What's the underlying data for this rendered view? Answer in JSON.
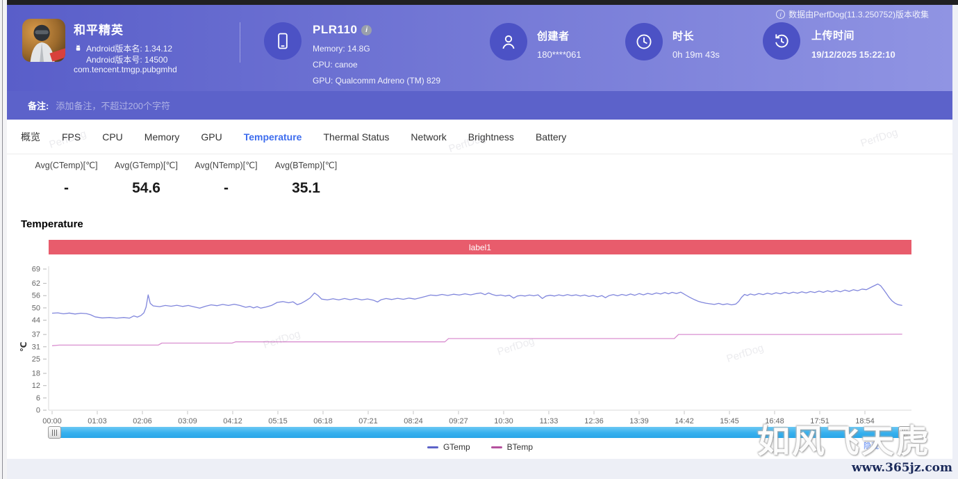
{
  "theme": {
    "accent": "#3d6cee",
    "header_from": "#595ec9",
    "header_to": "#9094e3",
    "note_bar": "#5c62ca",
    "icon_circle": "#4c52c5",
    "banner": "#e85c6c",
    "scrollbar": "#36b0ee"
  },
  "header": {
    "collector_note": "数据由PerfDog(11.3.250752)版本收集",
    "app": {
      "title": "和平精英",
      "version_name": "Android版本名: 1.34.12",
      "version_code": "Android版本号: 14500",
      "package": "com.tencent.tmgp.pubgmhd"
    },
    "device": {
      "model": "PLR110",
      "memory": "Memory: 14.8G",
      "cpu": "CPU: canoe",
      "gpu": "GPU: Qualcomm Adreno (TM) 829"
    },
    "creator": {
      "label": "创建者",
      "value": "180****061"
    },
    "duration": {
      "label": "时长",
      "value": "0h 19m 43s"
    },
    "upload": {
      "label": "上传时间",
      "value": "19/12/2025 15:22:10"
    }
  },
  "note_bar": {
    "label": "备注:",
    "placeholder": "添加备注，不超过200个字符"
  },
  "tabs": [
    {
      "label": "概览",
      "active": false
    },
    {
      "label": "FPS",
      "active": false
    },
    {
      "label": "CPU",
      "active": false
    },
    {
      "label": "Memory",
      "active": false
    },
    {
      "label": "GPU",
      "active": false
    },
    {
      "label": "Temperature",
      "active": true
    },
    {
      "label": "Thermal Status",
      "active": false
    },
    {
      "label": "Network",
      "active": false
    },
    {
      "label": "Brightness",
      "active": false
    },
    {
      "label": "Battery",
      "active": false
    }
  ],
  "stats": [
    {
      "label": "Avg(CTemp)[℃]",
      "value": "-"
    },
    {
      "label": "Avg(GTemp)[℃]",
      "value": "54.6"
    },
    {
      "label": "Avg(NTemp)[℃]",
      "value": "-"
    },
    {
      "label": "Avg(BTemp)[℃]",
      "value": "35.1"
    }
  ],
  "section_title": "Temperature",
  "chart_data": {
    "type": "line",
    "title": "Temperature",
    "banner_label": "label1",
    "banner_color": "#e85c6c",
    "ylabel": "℃",
    "ylim": [
      0,
      69
    ],
    "yticks": [
      0,
      6,
      12,
      18,
      25,
      31,
      37,
      44,
      50,
      56,
      62,
      69
    ],
    "xticks": [
      "00:00",
      "01:03",
      "02:06",
      "03:09",
      "04:12",
      "05:15",
      "06:18",
      "07:21",
      "08:24",
      "09:27",
      "10:30",
      "11:33",
      "12:36",
      "13:39",
      "14:42",
      "15:45",
      "16:48",
      "17:51",
      "18:54"
    ],
    "x_interval_seconds": 63,
    "grid": false,
    "legend_position": "bottom",
    "legend": [
      {
        "name": "GTemp",
        "color": "#5d63c8"
      },
      {
        "name": "BTemp",
        "color": "#b5519e"
      }
    ],
    "series": [
      {
        "name": "GTemp",
        "color": "#8086dc",
        "points": [
          [
            0,
            47.4
          ],
          [
            8,
            47.6
          ],
          [
            16,
            47.1
          ],
          [
            24,
            47.5
          ],
          [
            32,
            47.0
          ],
          [
            40,
            47.4
          ],
          [
            48,
            47.2
          ],
          [
            54,
            46.6
          ],
          [
            60,
            45.6
          ],
          [
            70,
            45.1
          ],
          [
            80,
            45.3
          ],
          [
            90,
            45.0
          ],
          [
            100,
            45.3
          ],
          [
            108,
            45.0
          ],
          [
            114,
            46.1
          ],
          [
            119,
            45.5
          ],
          [
            124,
            46.3
          ],
          [
            128,
            47.6
          ],
          [
            131,
            50.3
          ],
          [
            134,
            56.4
          ],
          [
            137,
            52.2
          ],
          [
            141,
            51.0
          ],
          [
            150,
            50.6
          ],
          [
            158,
            51.2
          ],
          [
            166,
            50.8
          ],
          [
            174,
            51.3
          ],
          [
            182,
            50.7
          ],
          [
            190,
            51.2
          ],
          [
            198,
            50.5
          ],
          [
            206,
            49.9
          ],
          [
            214,
            50.8
          ],
          [
            222,
            51.5
          ],
          [
            230,
            51.1
          ],
          [
            238,
            51.7
          ],
          [
            246,
            51.2
          ],
          [
            254,
            51.8
          ],
          [
            262,
            51.2
          ],
          [
            270,
            50.3
          ],
          [
            276,
            50.7
          ],
          [
            281,
            50.0
          ],
          [
            286,
            50.6
          ],
          [
            291,
            49.9
          ],
          [
            298,
            50.4
          ],
          [
            306,
            51.2
          ],
          [
            314,
            52.7
          ],
          [
            322,
            53.1
          ],
          [
            330,
            52.5
          ],
          [
            336,
            53.0
          ],
          [
            342,
            51.6
          ],
          [
            348,
            52.3
          ],
          [
            354,
            53.5
          ],
          [
            360,
            54.9
          ],
          [
            366,
            57.3
          ],
          [
            371,
            56.1
          ],
          [
            376,
            54.3
          ],
          [
            384,
            53.9
          ],
          [
            392,
            54.5
          ],
          [
            400,
            53.9
          ],
          [
            408,
            54.6
          ],
          [
            416,
            54.0
          ],
          [
            424,
            54.6
          ],
          [
            432,
            53.9
          ],
          [
            440,
            54.4
          ],
          [
            448,
            53.8
          ],
          [
            454,
            52.9
          ],
          [
            459,
            54.0
          ],
          [
            466,
            54.6
          ],
          [
            474,
            54.1
          ],
          [
            482,
            54.7
          ],
          [
            490,
            54.2
          ],
          [
            498,
            54.8
          ],
          [
            506,
            54.3
          ],
          [
            514,
            55.0
          ],
          [
            521,
            55.6
          ],
          [
            528,
            56.3
          ],
          [
            536,
            56.0
          ],
          [
            544,
            56.6
          ],
          [
            552,
            56.1
          ],
          [
            560,
            56.7
          ],
          [
            568,
            56.3
          ],
          [
            576,
            56.9
          ],
          [
            584,
            56.4
          ],
          [
            592,
            57.0
          ],
          [
            598,
            57.3
          ],
          [
            604,
            56.5
          ],
          [
            609,
            57.3
          ],
          [
            614,
            56.6
          ],
          [
            620,
            56.0
          ],
          [
            626,
            56.3
          ],
          [
            632,
            55.8
          ],
          [
            638,
            56.2
          ],
          [
            644,
            54.8
          ],
          [
            649,
            55.8
          ],
          [
            654,
            56.1
          ],
          [
            660,
            55.8
          ],
          [
            666,
            56.3
          ],
          [
            672,
            55.9
          ],
          [
            678,
            56.4
          ],
          [
            684,
            54.6
          ],
          [
            689,
            55.8
          ],
          [
            695,
            56.2
          ],
          [
            701,
            55.8
          ],
          [
            707,
            56.4
          ],
          [
            713,
            55.9
          ],
          [
            719,
            56.5
          ],
          [
            725,
            56.0
          ],
          [
            731,
            56.4
          ],
          [
            737,
            55.8
          ],
          [
            743,
            56.3
          ],
          [
            749,
            55.6
          ],
          [
            755,
            56.1
          ],
          [
            761,
            55.4
          ],
          [
            767,
            56.0
          ],
          [
            772,
            55.0
          ],
          [
            777,
            56.0
          ],
          [
            783,
            56.5
          ],
          [
            789,
            55.9
          ],
          [
            795,
            56.6
          ],
          [
            801,
            56.1
          ],
          [
            807,
            56.8
          ],
          [
            813,
            56.2
          ],
          [
            819,
            57.0
          ],
          [
            825,
            56.4
          ],
          [
            831,
            57.1
          ],
          [
            837,
            56.6
          ],
          [
            843,
            57.3
          ],
          [
            849,
            56.8
          ],
          [
            855,
            57.5
          ],
          [
            860,
            56.9
          ],
          [
            865,
            57.6
          ],
          [
            871,
            57.0
          ],
          [
            877,
            57.7
          ],
          [
            881,
            56.9
          ],
          [
            885,
            56.1
          ],
          [
            889,
            55.3
          ],
          [
            893,
            54.6
          ],
          [
            897,
            53.9
          ],
          [
            901,
            53.3
          ],
          [
            906,
            52.8
          ],
          [
            912,
            52.3
          ],
          [
            918,
            52.0
          ],
          [
            924,
            51.7
          ],
          [
            930,
            52.2
          ],
          [
            936,
            51.6
          ],
          [
            942,
            52.0
          ],
          [
            948,
            51.5
          ],
          [
            954,
            51.9
          ],
          [
            958,
            53.2
          ],
          [
            962,
            55.2
          ],
          [
            966,
            56.6
          ],
          [
            970,
            56.1
          ],
          [
            974,
            56.8
          ],
          [
            980,
            56.3
          ],
          [
            986,
            57.0
          ],
          [
            992,
            56.5
          ],
          [
            998,
            57.2
          ],
          [
            1004,
            56.7
          ],
          [
            1010,
            57.4
          ],
          [
            1016,
            56.9
          ],
          [
            1022,
            57.6
          ],
          [
            1028,
            57.0
          ],
          [
            1034,
            57.7
          ],
          [
            1040,
            57.2
          ],
          [
            1046,
            57.9
          ],
          [
            1052,
            57.3
          ],
          [
            1058,
            58.0
          ],
          [
            1064,
            57.5
          ],
          [
            1070,
            58.2
          ],
          [
            1076,
            57.6
          ],
          [
            1082,
            58.4
          ],
          [
            1088,
            57.8
          ],
          [
            1094,
            58.5
          ],
          [
            1100,
            57.9
          ],
          [
            1106,
            58.7
          ],
          [
            1112,
            58.1
          ],
          [
            1118,
            58.9
          ],
          [
            1124,
            58.4
          ],
          [
            1130,
            59.2
          ],
          [
            1136,
            58.9
          ],
          [
            1142,
            60.0
          ],
          [
            1148,
            61.0
          ],
          [
            1152,
            61.7
          ],
          [
            1156,
            60.8
          ],
          [
            1160,
            59.0
          ],
          [
            1164,
            57.0
          ],
          [
            1168,
            55.0
          ],
          [
            1172,
            53.4
          ],
          [
            1176,
            52.3
          ],
          [
            1180,
            51.6
          ],
          [
            1186,
            51.2
          ]
        ]
      },
      {
        "name": "BTemp",
        "color": "#d98fd0",
        "points": [
          [
            0,
            31.5
          ],
          [
            10,
            31.8
          ],
          [
            148,
            31.8
          ],
          [
            153,
            32.8
          ],
          [
            251,
            32.8
          ],
          [
            256,
            33.4
          ],
          [
            548,
            33.4
          ],
          [
            553,
            35.0
          ],
          [
            868,
            35.0
          ],
          [
            874,
            37.0
          ],
          [
            1100,
            37.0
          ],
          [
            1186,
            37.2
          ]
        ]
      }
    ]
  },
  "watermarks": {
    "brand": "PerfDog",
    "overlay_text": "如风飞天虎",
    "overlay_url": "www.365jz.com",
    "hide_label": "隐藏"
  }
}
